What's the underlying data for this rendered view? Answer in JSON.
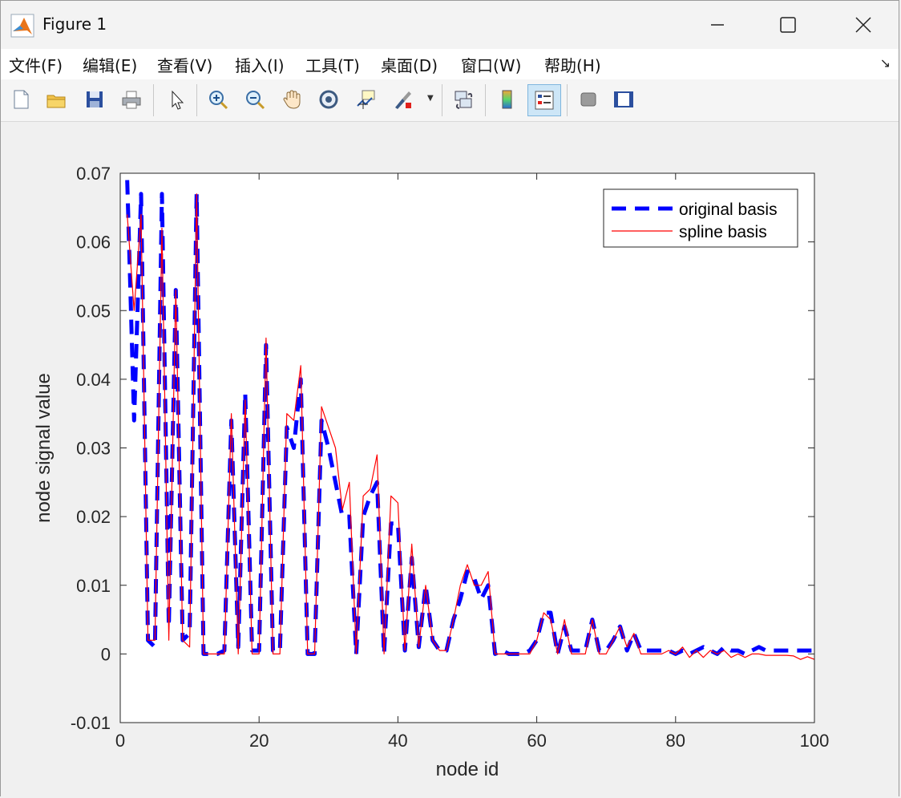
{
  "window": {
    "title": "Figure 1"
  },
  "menu": [
    "文件(F)",
    "编辑(E)",
    "查看(V)",
    "插入(I)",
    "工具(T)",
    "桌面(D)",
    "窗口(W)",
    "帮助(H)"
  ],
  "toolbar": [
    "new-file",
    "open-folder",
    "save",
    "print",
    "pointer",
    "zoom-in",
    "zoom-out",
    "pan",
    "rotate-3d",
    "data-cursor",
    "brush",
    "link",
    "colorbar",
    "legend",
    "hide-plot-tools",
    "show-plot-tools"
  ],
  "colors": {
    "original": "#0000ff",
    "spline": "#ff0000"
  },
  "chart_data": {
    "type": "line",
    "title": "",
    "xlabel": "node id",
    "ylabel": "node signal value",
    "xlim": [
      0,
      100
    ],
    "ylim": [
      -0.01,
      0.07
    ],
    "xticks": [
      "0",
      "20",
      "40",
      "60",
      "80",
      "100"
    ],
    "yticks": [
      "-0.01",
      "0",
      "0.01",
      "0.02",
      "0.03",
      "0.04",
      "0.05",
      "0.06",
      "0.07"
    ],
    "legend": {
      "position": "top-right",
      "entries": [
        "original basis",
        "spline basis"
      ]
    },
    "x": [
      1,
      2,
      3,
      4,
      5,
      6,
      7,
      8,
      9,
      10,
      11,
      12,
      13,
      14,
      15,
      16,
      17,
      18,
      19,
      20,
      21,
      22,
      23,
      24,
      25,
      26,
      27,
      28,
      29,
      30,
      31,
      32,
      33,
      34,
      35,
      36,
      37,
      38,
      39,
      40,
      41,
      42,
      43,
      44,
      45,
      46,
      47,
      48,
      49,
      50,
      51,
      52,
      53,
      54,
      55,
      56,
      57,
      58,
      59,
      60,
      61,
      62,
      63,
      64,
      65,
      66,
      67,
      68,
      69,
      70,
      71,
      72,
      73,
      74,
      75,
      76,
      77,
      78,
      79,
      80,
      81,
      82,
      83,
      84,
      85,
      86,
      87,
      88,
      89,
      90,
      91,
      92,
      93,
      94,
      95,
      96,
      97,
      98,
      99,
      100
    ],
    "series": [
      {
        "name": "original basis",
        "style": "dashed",
        "values": [
          0.069,
          0.034,
          0.067,
          0.002,
          0.001,
          0.067,
          0.004,
          0.053,
          0.002,
          0.003,
          0.067,
          0.0,
          0.0,
          0.0,
          0.0005,
          0.034,
          0.001,
          0.038,
          0.0005,
          0.0005,
          0.045,
          0.0005,
          0.0005,
          0.033,
          0.03,
          0.04,
          0.0,
          0.0,
          0.034,
          0.03,
          0.025,
          0.02,
          0.02,
          0.0,
          0.02,
          0.023,
          0.025,
          0.0,
          0.019,
          0.019,
          0.0005,
          0.014,
          0.001,
          0.01,
          0.002,
          0.0005,
          0.0005,
          0.005,
          0.008,
          0.012,
          0.011,
          0.008,
          0.01,
          0.0,
          0.0005,
          0.0,
          0.0,
          0.0,
          0.0005,
          0.002,
          0.006,
          0.006,
          0.0,
          0.004,
          0.0005,
          0.0005,
          0.0005,
          0.005,
          0.0005,
          0.0005,
          0.002,
          0.004,
          0.0005,
          0.003,
          0.0005,
          0.0005,
          0.0005,
          0.0005,
          0.0005,
          0.0,
          0.0005,
          0.0,
          0.0005,
          0.001,
          0.0005,
          0.0,
          0.001,
          0.0005,
          0.0005,
          0.0,
          0.0005,
          0.001,
          0.0005,
          0.0005,
          0.0005,
          0.0005,
          0.0005,
          0.0005,
          0.0005,
          0.0005
        ]
      },
      {
        "name": "spline basis",
        "style": "solid",
        "values": [
          0.064,
          0.05,
          0.064,
          0.002,
          0.002,
          0.062,
          0.002,
          0.053,
          0.002,
          0.001,
          0.067,
          0.0,
          0.0,
          0.0,
          0.0,
          0.035,
          0.0,
          0.037,
          0.0,
          0.0,
          0.046,
          0.0,
          0.0,
          0.035,
          0.034,
          0.042,
          0.0,
          0.0,
          0.036,
          0.033,
          0.03,
          0.021,
          0.025,
          0.0,
          0.023,
          0.024,
          0.029,
          0.0,
          0.023,
          0.022,
          0.0005,
          0.016,
          0.001,
          0.01,
          0.002,
          0.0005,
          0.0005,
          0.005,
          0.01,
          0.013,
          0.01,
          0.01,
          0.012,
          0.0,
          0.0,
          0.0,
          0.0,
          0.0,
          0.0,
          0.002,
          0.006,
          0.005,
          0.0,
          0.005,
          0.0,
          0.0,
          0.0,
          0.005,
          0.0,
          0.0,
          0.002,
          0.004,
          0.001,
          0.003,
          0.0,
          0.0,
          0.0,
          0.0,
          0.0005,
          0.0,
          0.001,
          -0.0005,
          0.0005,
          -0.0005,
          0.0005,
          0.0,
          0.0005,
          -0.0005,
          0.0,
          -0.0005,
          0.0,
          0.0,
          -0.0002,
          -0.0002,
          -0.0002,
          -0.0002,
          -0.0003,
          -0.0008,
          -0.0004,
          -0.0008
        ]
      }
    ]
  }
}
